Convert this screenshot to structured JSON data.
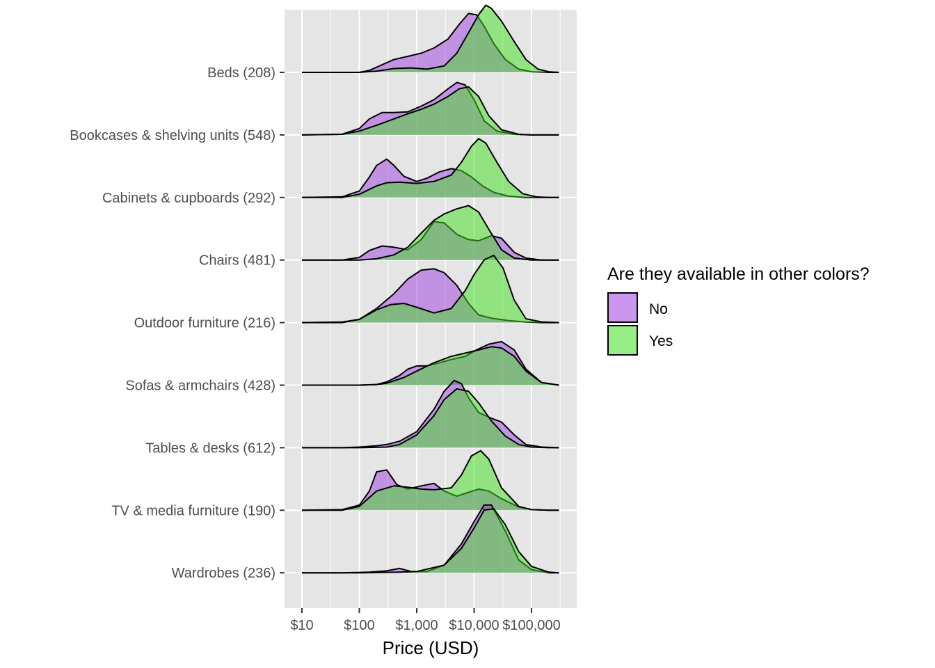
{
  "chart_data": {
    "type": "ridgeline-density",
    "title": "",
    "xlabel": "Price (USD)",
    "ylabel": "",
    "x_scale": "log10",
    "xlim": [
      8,
      320000
    ],
    "x_ticks": [
      {
        "value": 10,
        "label": "$10"
      },
      {
        "value": 100,
        "label": "$100"
      },
      {
        "value": 1000,
        "label": "$1,000"
      },
      {
        "value": 10000,
        "label": "$10,000"
      },
      {
        "value": 100000,
        "label": "$100,000"
      }
    ],
    "grid": true,
    "legend": {
      "title": "Are they available in other colors?",
      "position": "right",
      "entries": [
        {
          "name": "No",
          "color": "#a040e0"
        },
        {
          "name": "Yes",
          "color": "#40e020"
        }
      ]
    },
    "colors": {
      "No": "#a040e0",
      "Yes": "#40e020",
      "panel": "#e5e5e5",
      "grid": "#ffffff"
    },
    "categories": [
      {
        "label": "Wardrobes (236)",
        "series": {
          "No": {
            "x": [
              10,
              50,
              150,
              300,
              500,
              800,
              1500,
              3000,
              6000,
              10000,
              15000,
              20000,
              35000,
              60000,
              100000,
              200000,
              300000
            ],
            "y": [
              0,
              0,
              0.01,
              0.03,
              0.07,
              0.02,
              0.02,
              0.12,
              0.45,
              0.8,
              1.06,
              1.06,
              0.65,
              0.2,
              0.05,
              0,
              0
            ]
          },
          "Yes": {
            "x": [
              10,
              100,
              500,
              1000,
              3000,
              6000,
              10000,
              15000,
              22000,
              35000,
              60000,
              100000,
              200000,
              300000
            ],
            "y": [
              0,
              0,
              0.01,
              0.02,
              0.12,
              0.38,
              0.7,
              0.98,
              1.0,
              0.75,
              0.33,
              0.1,
              0.01,
              0
            ]
          }
        }
      },
      {
        "label": "TV & media furniture (190)",
        "series": {
          "No": {
            "x": [
              10,
              50,
              100,
              150,
              200,
              300,
              450,
              700,
              1200,
              2000,
              3000,
              5000,
              8000,
              12000,
              18000,
              30000,
              60000,
              100000,
              200000,
              300000
            ],
            "y": [
              0,
              0.01,
              0.08,
              0.3,
              0.6,
              0.63,
              0.4,
              0.33,
              0.38,
              0.42,
              0.3,
              0.22,
              0.28,
              0.33,
              0.3,
              0.18,
              0.05,
              0.01,
              0,
              0
            ]
          },
          "Yes": {
            "x": [
              10,
              50,
              100,
              200,
              400,
              700,
              1200,
              2000,
              4000,
              6000,
              9000,
              13000,
              18000,
              30000,
              60000,
              100000,
              200000,
              300000
            ],
            "y": [
              0,
              0,
              0.06,
              0.3,
              0.38,
              0.36,
              0.33,
              0.32,
              0.35,
              0.55,
              0.85,
              0.93,
              0.8,
              0.35,
              0.06,
              0.01,
              0,
              0
            ]
          }
        }
      },
      {
        "label": "Tables & desks (612)",
        "series": {
          "No": {
            "x": [
              10,
              50,
              100,
              200,
              300,
              500,
              1000,
              2000,
              3000,
              4500,
              6000,
              8000,
              12000,
              20000,
              30000,
              50000,
              80000,
              150000,
              300000
            ],
            "y": [
              0,
              0,
              0.01,
              0.03,
              0.05,
              0.1,
              0.25,
              0.6,
              0.88,
              1.05,
              1.0,
              0.78,
              0.55,
              0.46,
              0.4,
              0.2,
              0.05,
              0.01,
              0
            ]
          },
          "Yes": {
            "x": [
              10,
              100,
              300,
              500,
              1000,
              2000,
              3000,
              5000,
              8000,
              12000,
              20000,
              35000,
              60000,
              100000,
              200000,
              300000
            ],
            "y": [
              0,
              0,
              0.01,
              0.05,
              0.2,
              0.5,
              0.75,
              0.92,
              0.88,
              0.7,
              0.42,
              0.18,
              0.05,
              0.01,
              0,
              0
            ]
          }
        }
      },
      {
        "label": "Sofas & armchairs (428)",
        "series": {
          "No": {
            "x": [
              10,
              100,
              200,
              300,
              500,
              700,
              1000,
              1500,
              2500,
              4000,
              7000,
              11000,
              18000,
              30000,
              50000,
              80000,
              150000,
              300000
            ],
            "y": [
              0,
              0,
              0.01,
              0.05,
              0.15,
              0.25,
              0.3,
              0.3,
              0.35,
              0.4,
              0.45,
              0.55,
              0.64,
              0.68,
              0.55,
              0.25,
              0.04,
              0
            ]
          },
          "Yes": {
            "x": [
              10,
              100,
              200,
              300,
              600,
              1000,
              2000,
              4000,
              7000,
              12000,
              20000,
              30000,
              50000,
              80000,
              150000,
              300000
            ],
            "y": [
              0,
              0,
              0.01,
              0.03,
              0.12,
              0.22,
              0.35,
              0.45,
              0.5,
              0.55,
              0.6,
              0.58,
              0.45,
              0.22,
              0.04,
              0
            ]
          }
        }
      },
      {
        "label": "Outdoor furniture (216)",
        "series": {
          "No": {
            "x": [
              10,
              50,
              100,
              200,
              400,
              700,
              1200,
              2000,
              3000,
              5000,
              8000,
              12000,
              20000,
              40000,
              80000,
              150000,
              300000
            ],
            "y": [
              0,
              0.01,
              0.05,
              0.22,
              0.45,
              0.68,
              0.82,
              0.84,
              0.78,
              0.58,
              0.3,
              0.12,
              0.07,
              0.03,
              0.01,
              0,
              0
            ]
          },
          "Yes": {
            "x": [
              10,
              50,
              100,
              200,
              350,
              600,
              1000,
              2000,
              4000,
              7000,
              10000,
              15000,
              22000,
              32000,
              50000,
              80000,
              150000,
              300000
            ],
            "y": [
              0,
              0,
              0.05,
              0.2,
              0.28,
              0.3,
              0.24,
              0.15,
              0.22,
              0.5,
              0.75,
              0.98,
              1.05,
              0.85,
              0.35,
              0.06,
              0.01,
              0
            ]
          }
        }
      },
      {
        "label": "Chairs (481)",
        "series": {
          "No": {
            "x": [
              10,
              50,
              100,
              150,
              250,
              400,
              700,
              1200,
              2000,
              3000,
              5000,
              8000,
              12000,
              20000,
              30000,
              50000,
              80000,
              150000,
              300000
            ],
            "y": [
              0,
              0,
              0.04,
              0.15,
              0.22,
              0.2,
              0.16,
              0.32,
              0.6,
              0.58,
              0.4,
              0.32,
              0.3,
              0.38,
              0.34,
              0.12,
              0.03,
              0,
              0
            ]
          },
          "Yes": {
            "x": [
              10,
              100,
              200,
              400,
              700,
              1200,
              2000,
              3000,
              5000,
              8000,
              12000,
              18000,
              30000,
              50000,
              100000,
              300000
            ],
            "y": [
              0,
              0,
              0.02,
              0.08,
              0.2,
              0.42,
              0.62,
              0.72,
              0.8,
              0.85,
              0.75,
              0.48,
              0.16,
              0.03,
              0,
              0
            ]
          }
        }
      },
      {
        "label": "Cabinets & cupboards (292)",
        "series": {
          "No": {
            "x": [
              10,
              50,
              100,
              150,
              200,
              300,
              400,
              600,
              1000,
              1500,
              2500,
              4000,
              6000,
              9000,
              14000,
              22000,
              40000,
              80000,
              150000,
              300000
            ],
            "y": [
              0,
              0.01,
              0.1,
              0.32,
              0.5,
              0.6,
              0.5,
              0.33,
              0.25,
              0.3,
              0.4,
              0.45,
              0.42,
              0.32,
              0.18,
              0.08,
              0.02,
              0,
              0,
              0
            ]
          },
          "Yes": {
            "x": [
              10,
              50,
              100,
              200,
              300,
              500,
              1000,
              2000,
              4000,
              6000,
              9000,
              12000,
              16000,
              25000,
              40000,
              70000,
              120000,
              200000,
              300000
            ],
            "y": [
              0,
              0,
              0.05,
              0.18,
              0.23,
              0.24,
              0.22,
              0.25,
              0.35,
              0.55,
              0.8,
              0.92,
              0.85,
              0.55,
              0.25,
              0.06,
              0.01,
              0,
              0
            ]
          }
        }
      },
      {
        "label": "Bookcases & shelving units (548)",
        "series": {
          "No": {
            "x": [
              10,
              50,
              100,
              150,
              250,
              400,
              700,
              1200,
              2000,
              3500,
              5000,
              7000,
              10000,
              15000,
              25000,
              50000,
              100000,
              300000
            ],
            "y": [
              0,
              0.01,
              0.1,
              0.25,
              0.35,
              0.35,
              0.36,
              0.45,
              0.55,
              0.72,
              0.82,
              0.78,
              0.55,
              0.22,
              0.06,
              0.01,
              0,
              0
            ]
          },
          "Yes": {
            "x": [
              10,
              50,
              100,
              200,
              400,
              700,
              1200,
              2000,
              3500,
              5500,
              8000,
              12000,
              18000,
              30000,
              60000,
              100000,
              300000
            ],
            "y": [
              0,
              0.01,
              0.06,
              0.15,
              0.25,
              0.33,
              0.4,
              0.48,
              0.6,
              0.72,
              0.75,
              0.6,
              0.3,
              0.08,
              0.01,
              0,
              0
            ]
          }
        }
      },
      {
        "label": "Beds (208)",
        "series": {
          "No": {
            "x": [
              10,
              100,
              150,
              250,
              400,
              700,
              1200,
              2000,
              3500,
              5500,
              8000,
              11000,
              15000,
              22000,
              35000,
              60000,
              100000,
              200000,
              300000
            ],
            "y": [
              0,
              0,
              0.03,
              0.12,
              0.2,
              0.25,
              0.3,
              0.38,
              0.52,
              0.75,
              0.92,
              0.9,
              0.72,
              0.45,
              0.2,
              0.05,
              0.01,
              0,
              0
            ]
          },
          "Yes": {
            "x": [
              10,
              100,
              200,
              400,
              800,
              1500,
              3000,
              5000,
              8000,
              12000,
              16000,
              20000,
              30000,
              50000,
              80000,
              130000,
              200000,
              300000
            ],
            "y": [
              0,
              0,
              0.02,
              0.06,
              0.07,
              0.05,
              0.1,
              0.3,
              0.62,
              0.9,
              1.05,
              1.0,
              0.8,
              0.48,
              0.2,
              0.05,
              0.01,
              0
            ]
          }
        }
      }
    ]
  }
}
